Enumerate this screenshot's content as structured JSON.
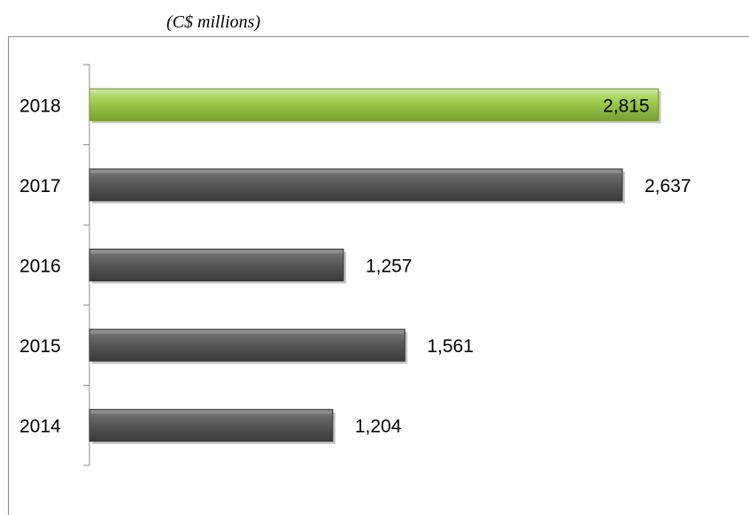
{
  "unit_label": "(C$ millions)",
  "colors": {
    "highlight_bar": "#9bc94a",
    "default_bar": "#595959",
    "axis": "#8a8a8a",
    "text": "#000000"
  },
  "chart_data": {
    "type": "bar",
    "orientation": "horizontal",
    "title": "",
    "subtitle": "(C$ millions)",
    "xlabel": "",
    "ylabel": "",
    "categories": [
      "2018",
      "2017",
      "2016",
      "2015",
      "2014"
    ],
    "values": [
      2815,
      2637,
      1257,
      1561,
      1204
    ],
    "value_labels": [
      "2,815",
      "2,637",
      "1,257",
      "1,561",
      "1,204"
    ],
    "highlighted_category": "2018",
    "xlim": [
      0,
      2900
    ],
    "grid": false,
    "legend": "none"
  }
}
